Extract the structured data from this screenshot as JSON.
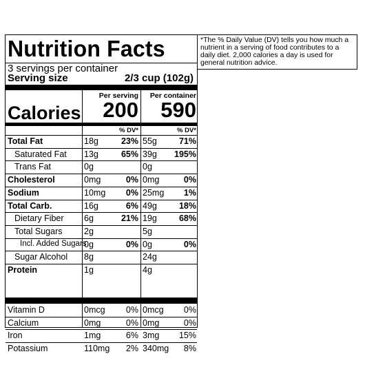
{
  "title": "Nutrition Facts",
  "servings_per_container": "3 servings per container",
  "serving_size_label": "Serving size",
  "serving_size_value": "2/3 cup (102g)",
  "calories_label": "Calories",
  "col1": {
    "header": "Per serving",
    "calories": "200",
    "dv_label": "% DV*"
  },
  "col2": {
    "header": "Per container",
    "calories": "590",
    "dv_label": "% DV*"
  },
  "nutrients": [
    {
      "name": "Total Fat",
      "bold": true,
      "indent": 0,
      "s_amt": "18g",
      "s_dv": "23%",
      "c_amt": "55g",
      "c_dv": "71%"
    },
    {
      "name": "Saturated Fat",
      "bold": false,
      "indent": 1,
      "s_amt": "13g",
      "s_dv": "65%",
      "c_amt": "39g",
      "c_dv": "195%"
    },
    {
      "name": "Trans Fat",
      "bold": false,
      "indent": 1,
      "s_amt": "0g",
      "s_dv": "",
      "c_amt": "0g",
      "c_dv": ""
    },
    {
      "name": "Cholesterol",
      "bold": true,
      "indent": 0,
      "s_amt": "0mg",
      "s_dv": "0%",
      "c_amt": "0mg",
      "c_dv": "0%"
    },
    {
      "name": "Sodium",
      "bold": true,
      "indent": 0,
      "s_amt": "10mg",
      "s_dv": "0%",
      "c_amt": "25mg",
      "c_dv": "1%"
    },
    {
      "name": "Total Carb.",
      "bold": true,
      "indent": 0,
      "s_amt": "16g",
      "s_dv": "6%",
      "c_amt": "49g",
      "c_dv": "18%"
    },
    {
      "name": "Dietary Fiber",
      "bold": false,
      "indent": 1,
      "s_amt": "6g",
      "s_dv": "21%",
      "c_amt": "19g",
      "c_dv": "68%"
    },
    {
      "name": "Total Sugars",
      "bold": false,
      "indent": 1,
      "s_amt": "2g",
      "s_dv": "",
      "c_amt": "5g",
      "c_dv": ""
    },
    {
      "name": "Incl. Added Sugars",
      "bold": false,
      "indent": 2,
      "s_amt": "0g",
      "s_dv": "0%",
      "c_amt": "0g",
      "c_dv": "0%"
    },
    {
      "name": "Sugar Alcohol",
      "bold": false,
      "indent": 1,
      "s_amt": "8g",
      "s_dv": "",
      "c_amt": "24g",
      "c_dv": ""
    },
    {
      "name": "Protein",
      "bold": true,
      "indent": 0,
      "s_amt": "1g",
      "s_dv": "",
      "c_amt": "4g",
      "c_dv": ""
    }
  ],
  "vitamins": [
    {
      "name": "Vitamin D",
      "s_amt": "0mcg",
      "s_dv": "0%",
      "c_amt": "0mcg",
      "c_dv": "0%"
    },
    {
      "name": "Calcium",
      "s_amt": "0mg",
      "s_dv": "0%",
      "c_amt": "0mg",
      "c_dv": "0%"
    },
    {
      "name": "Iron",
      "s_amt": "1mg",
      "s_dv": "6%",
      "c_amt": "3mg",
      "c_dv": "15%"
    },
    {
      "name": "Potassium",
      "s_amt": "110mg",
      "s_dv": "2%",
      "c_amt": "340mg",
      "c_dv": "8%"
    }
  ],
  "footnote": "*The % Daily Value (DV) tells you how much a nutrient in a serving of food contributes to a daily diet. 2,000 calories a day is used for general nutrition advice."
}
